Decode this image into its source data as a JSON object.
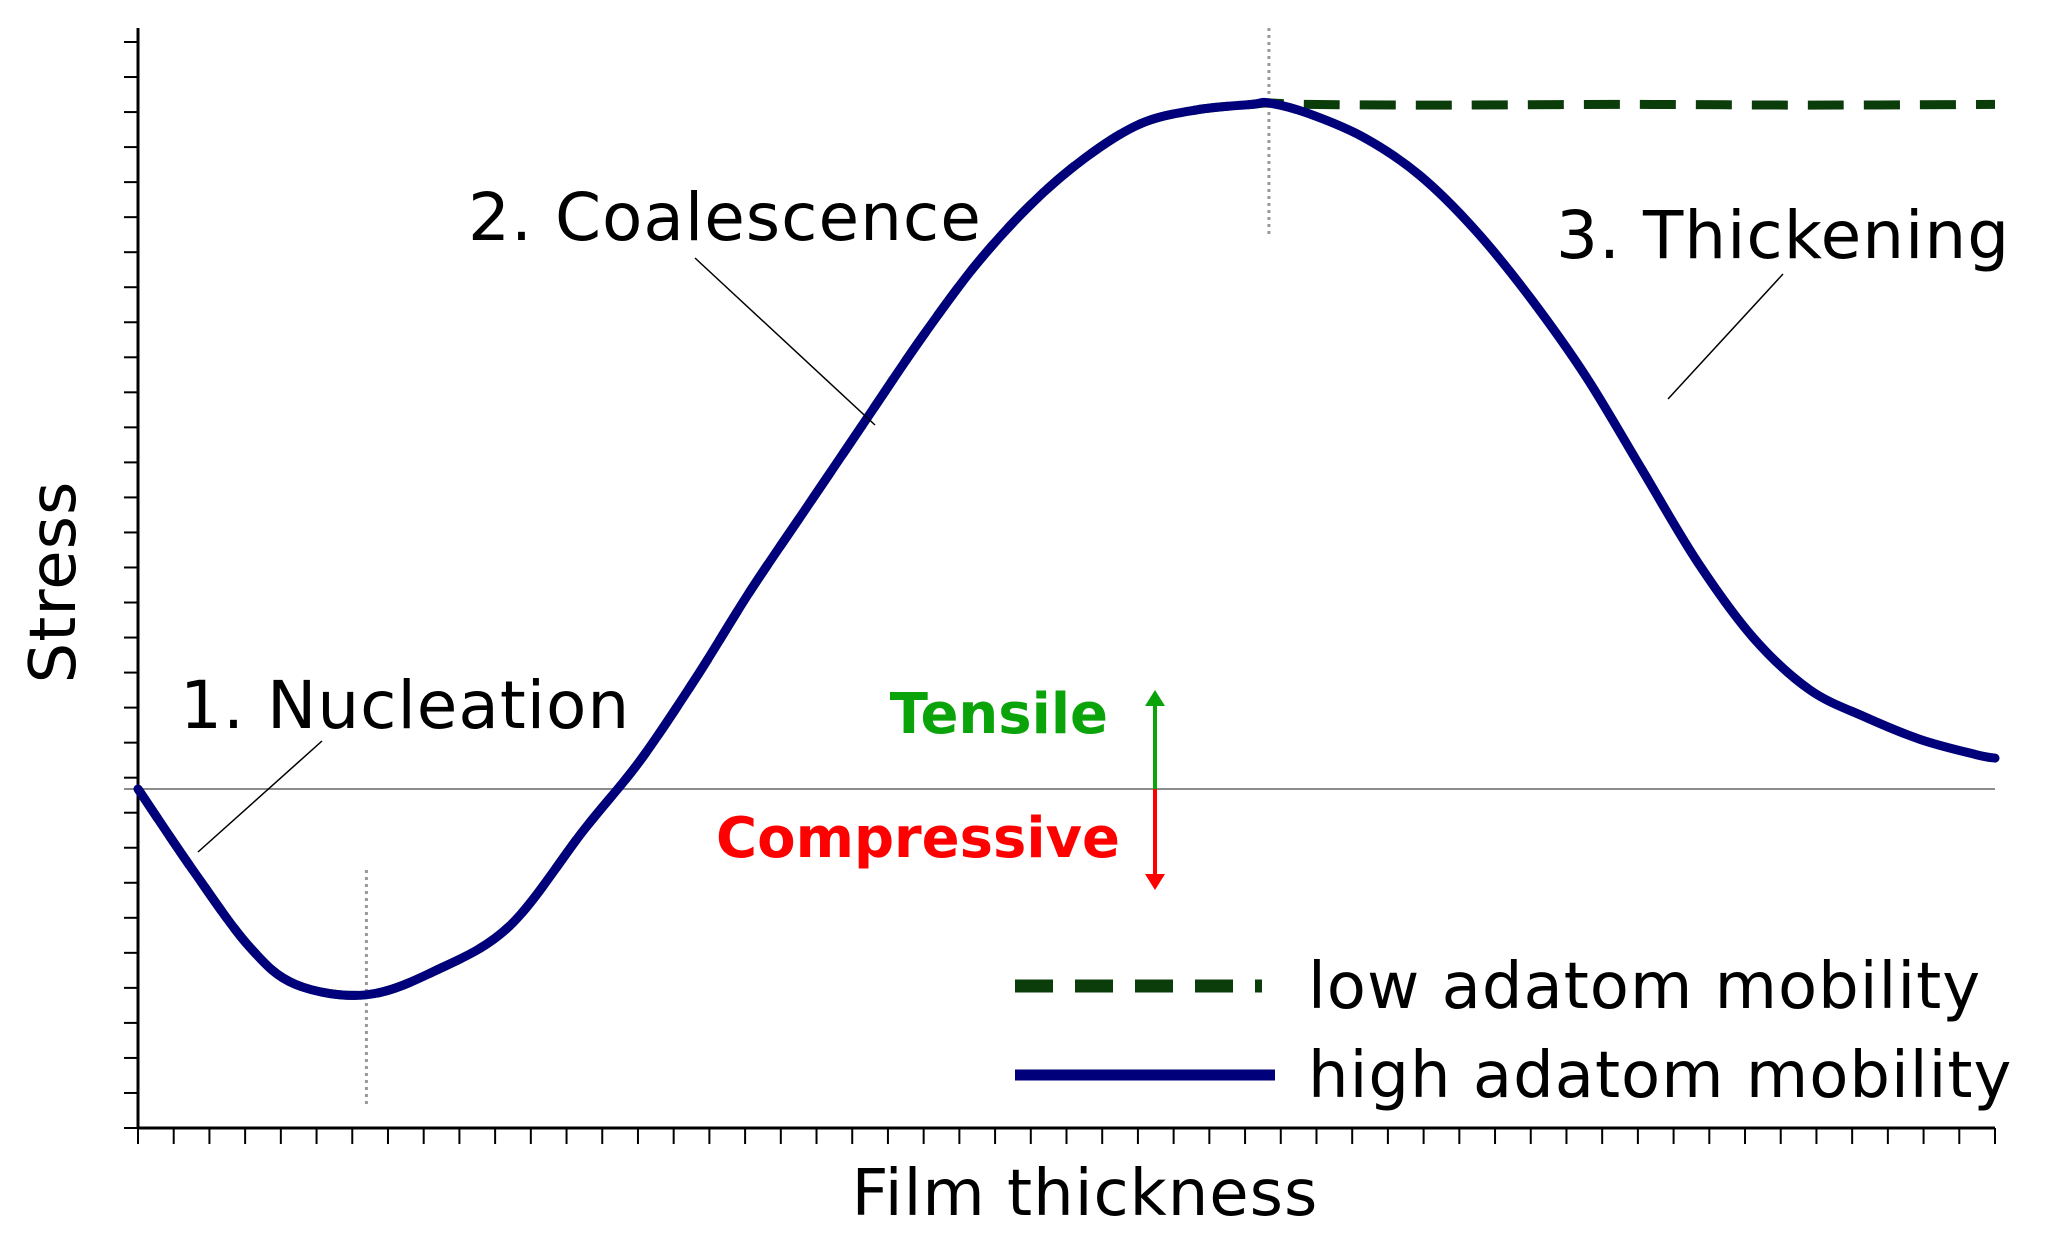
{
  "chart_data": {
    "type": "line",
    "xlabel": "Film thickness",
    "ylabel": "Stress",
    "xlim": [
      0,
      10
    ],
    "ylim": [
      -5,
      10
    ],
    "grid": false,
    "x_tick_count": 53,
    "y_tick_count": 32,
    "series": [
      {
        "name": "low adatom mobility",
        "style": "dashed",
        "color": "#0b3d0b",
        "x": [
          0,
          0.3,
          0.6,
          0.85,
          1.23,
          1.6,
          2.0,
          2.4,
          2.7,
          3.0,
          3.3,
          3.6,
          3.9,
          4.2,
          4.5,
          4.8,
          5.1,
          5.4,
          5.7,
          6.0,
          6.09,
          6.3,
          7.0,
          8.0,
          9.0,
          10.0
        ],
        "y": [
          0,
          -1.2,
          -2.3,
          -2.85,
          -3.0,
          -2.65,
          -2.0,
          -0.6,
          0.4,
          1.6,
          2.9,
          4.1,
          5.3,
          6.5,
          7.6,
          8.5,
          9.2,
          9.7,
          9.9,
          9.98,
          10.0,
          9.98,
          9.97,
          9.98,
          9.97,
          9.98
        ]
      },
      {
        "name": "high adatom mobility",
        "style": "solid",
        "color": "#00007a",
        "x": [
          0,
          0.3,
          0.6,
          0.85,
          1.23,
          1.6,
          2.0,
          2.4,
          2.7,
          3.0,
          3.3,
          3.6,
          3.9,
          4.2,
          4.5,
          4.8,
          5.1,
          5.4,
          5.7,
          6.0,
          6.09,
          6.3,
          6.6,
          6.9,
          7.2,
          7.5,
          7.8,
          8.1,
          8.4,
          8.7,
          9.0,
          9.3,
          9.6,
          9.9,
          10.0
        ],
        "y": [
          0,
          -1.2,
          -2.3,
          -2.85,
          -3.0,
          -2.65,
          -2.0,
          -0.6,
          0.4,
          1.6,
          2.9,
          4.1,
          5.3,
          6.5,
          7.6,
          8.5,
          9.2,
          9.7,
          9.9,
          9.98,
          10.0,
          9.85,
          9.5,
          8.95,
          8.15,
          7.15,
          6.0,
          4.65,
          3.3,
          2.2,
          1.45,
          1.05,
          0.72,
          0.5,
          0.45
        ]
      }
    ],
    "reference_lines": {
      "zero_line_y": 0,
      "dotted_verticals_x": [
        1.23,
        6.09
      ]
    },
    "annotations": [
      {
        "text": "1. Nucleation",
        "x": 0.35,
        "y": -0.9
      },
      {
        "text": "2. Coalescence",
        "x": 3.95,
        "y": 5.2
      },
      {
        "text": "3. Thickening",
        "x": 8.2,
        "y": 5.4
      }
    ],
    "direction_labels": {
      "tensile": {
        "text": "Tensile",
        "color": "#0aa30a"
      },
      "compressive": {
        "text": "Compressive",
        "color": "#ff0000"
      }
    },
    "legend": {
      "position": "bottom-right",
      "entries": [
        "low adatom mobility",
        "high adatom mobility"
      ]
    }
  }
}
